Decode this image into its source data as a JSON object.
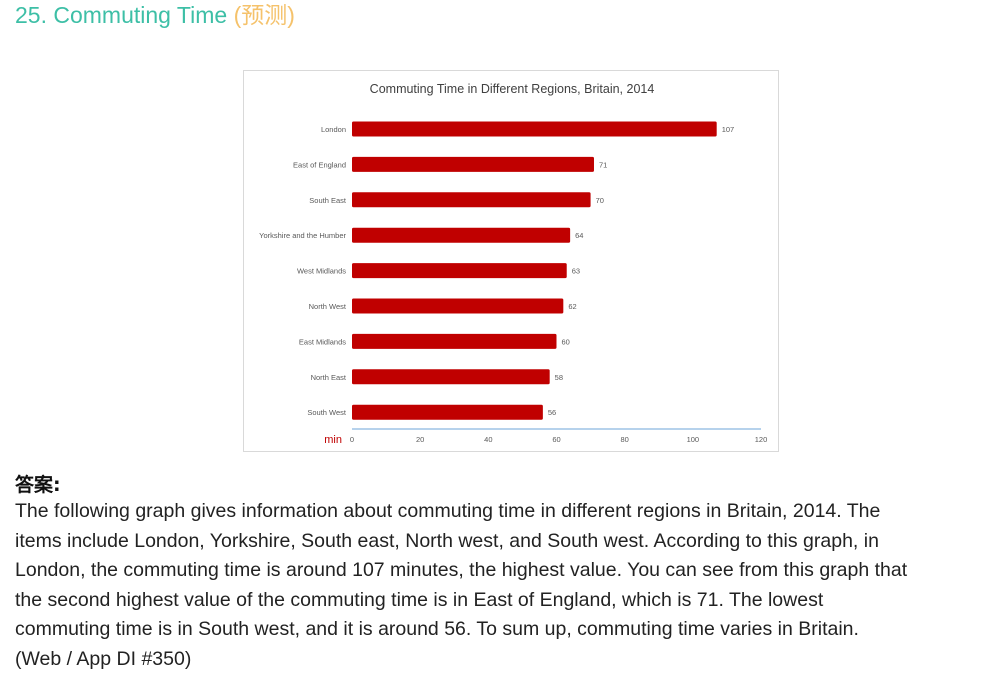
{
  "heading": {
    "title": "25. Commuting Time",
    "tag": "(预测)"
  },
  "answer": {
    "label": "答案:",
    "lines": [
      "The following graph gives information about commuting time in different regions in Britain, 2014. The",
      "items include London, Yorkshire, South east, North west, and South west. According to this graph, in",
      "London, the commuting time is around 107 minutes, the highest value. You can see from this graph that",
      "the second highest value of the commuting time is in East of England, which is 71. The lowest",
      "commuting time is in South west, and it is around 56. To sum up, commuting time varies in Britain.",
      "(Web / App DI #350)"
    ]
  },
  "colors": {
    "heading": "#3dbfa6",
    "heading_tag": "#f5c26b",
    "bar": "#c00000",
    "axis_line": "#9dc3e6",
    "axis_unit": "#c00000"
  },
  "chart_data": {
    "type": "bar",
    "orientation": "horizontal",
    "title": "Commuting Time in Different Regions, Britain, 2014",
    "xlabel": "min",
    "ylabel": "",
    "categories": [
      "London",
      "East of England",
      "South East",
      "Yorkshire and the Humber",
      "West Midlands",
      "North West",
      "East Midlands",
      "North East",
      "South West"
    ],
    "values": [
      107,
      71,
      70,
      64,
      63,
      62,
      60,
      58,
      56
    ],
    "xlim": [
      0,
      120
    ],
    "xticks": [
      "0",
      "20",
      "40",
      "60",
      "80",
      "100",
      "120"
    ],
    "data_labels": true,
    "grid": false,
    "legend": "none"
  }
}
